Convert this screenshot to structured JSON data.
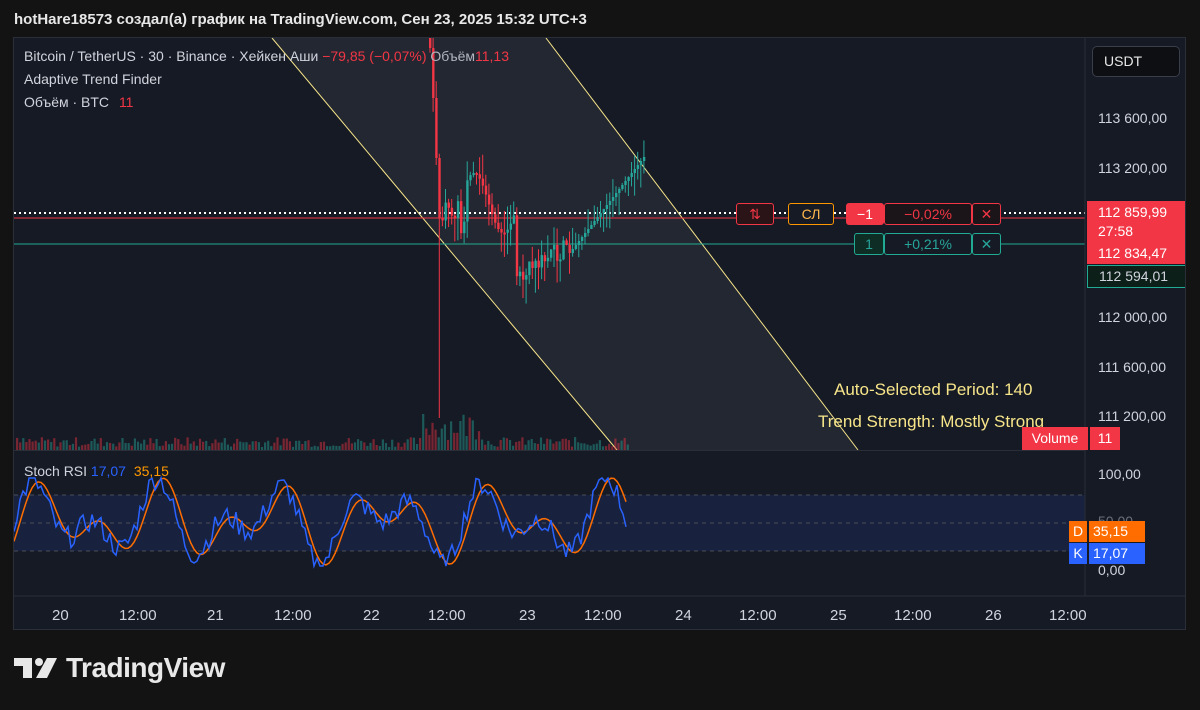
{
  "caption": "hotHare18573 создал(а) график на TradingView.com, Сен 23, 2025 15:32 UTC+3",
  "legend": {
    "symbol": "Bitcoin / TetherUS · 30 · Binance · Хейкен Аши",
    "change": "−79,85 (−0,07%)",
    "volume_label": "Объём",
    "volume_value": "11,13",
    "indicator": "Adaptive Trend Finder",
    "vol_line_label": "Объём · BTC",
    "vol_line_value": "11"
  },
  "currency_button": "USDT",
  "price_axis": [
    "113 600,00",
    "113 200,00",
    "112 000,00",
    "111 600,00",
    "111 200,00"
  ],
  "price_tags": {
    "current": "112 859,99",
    "countdown": "27:58",
    "high_line": "112 834,47",
    "low_line": "112 594,01"
  },
  "orders": {
    "reverse_icon": "⇅",
    "stop_label": "СЛ",
    "sell_qty": "−1",
    "sell_pct": "−0,02%",
    "close_icon": "✕",
    "buy_qty": "1",
    "buy_pct": "+0,21%"
  },
  "annotations": {
    "period": "Auto-Selected Period: 140",
    "strength": "Trend Strength: Mostly Strong"
  },
  "volume_badge": {
    "label": "Volume",
    "value": "11"
  },
  "stoch": {
    "title": "Stoch RSI",
    "k_value": "17,07",
    "d_value": "35,15",
    "axis": [
      "100,00",
      "50,00",
      "0,00"
    ],
    "d_tag_label": "D",
    "k_tag_label": "K"
  },
  "time_axis": [
    "20",
    "12:00",
    "21",
    "12:00",
    "22",
    "12:00",
    "23",
    "12:00",
    "24",
    "12:00",
    "25",
    "12:00",
    "26",
    "12:00"
  ],
  "logo": "TradingView",
  "colors": {
    "up": "#26a69a",
    "down": "#f23645",
    "stoch_k": "#2962ff",
    "stoch_d": "#ff6d00",
    "channel": "#f7e58a"
  }
}
